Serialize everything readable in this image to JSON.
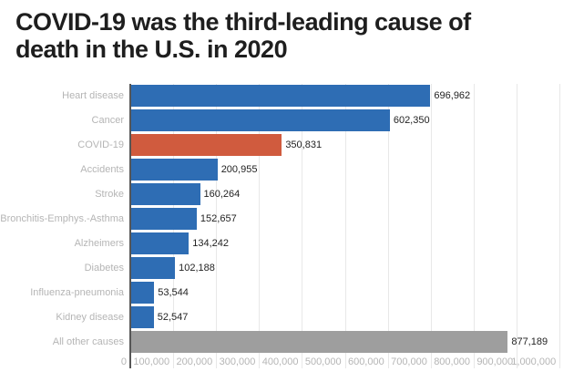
{
  "title_lines": [
    "COVID-19 was the third-leading cause of",
    "death in the U.S. in 2020"
  ],
  "chart_data": {
    "type": "bar",
    "orientation": "horizontal",
    "title": "COVID-19 was the third-leading cause of death in the U.S. in 2020",
    "categories": [
      "Heart disease",
      "Cancer",
      "COVID-19",
      "Accidents",
      "Stroke",
      "Bronchitis-Emphys.-Asthma",
      "Alzheimers",
      "Diabetes",
      "Influenza-pneumonia",
      "Kidney disease",
      "All other causes"
    ],
    "values": [
      696962,
      602350,
      350831,
      200955,
      160264,
      152657,
      134242,
      102188,
      53544,
      52547,
      877189
    ],
    "value_labels": [
      "696,962",
      "602,350",
      "350,831",
      "200,955",
      "160,264",
      "152,657",
      "134,242",
      "102,188",
      "53,544",
      "52,547",
      "877,189"
    ],
    "bar_colors": [
      "#2e6db4",
      "#2e6db4",
      "#d05b3e",
      "#2e6db4",
      "#2e6db4",
      "#2e6db4",
      "#2e6db4",
      "#2e6db4",
      "#2e6db4",
      "#2e6db4",
      "#9e9e9e"
    ],
    "default_color": "#2e6db4",
    "highlight_category": "COVID-19",
    "highlight_color": "#d05b3e",
    "other_causes_color": "#9e9e9e",
    "xlabel": "",
    "ylabel": "",
    "xlim": [
      0,
      1042000
    ],
    "x_ticks": [
      0,
      100000,
      200000,
      300000,
      400000,
      500000,
      600000,
      700000,
      800000,
      900000,
      1000000
    ],
    "x_tick_labels": [
      "0",
      "100,000",
      "200,000",
      "300,000",
      "400,000",
      "500,000",
      "600,000",
      "700,000",
      "800,000",
      "900,000",
      "1,000,000"
    ],
    "grid": true,
    "legend": "none"
  },
  "colors": {
    "title": "#1e1e1e",
    "grid": "#e8e8e8",
    "axis_line": "#565656",
    "category_label": "#b5b5b5",
    "tick_label": "#b5b5b5",
    "value_label": "#232323",
    "background": "#ffffff"
  }
}
